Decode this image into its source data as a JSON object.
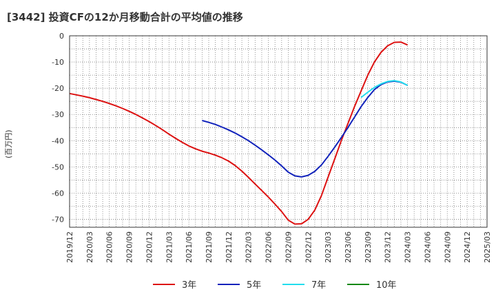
{
  "chart_data": {
    "type": "line",
    "title": "[3442]  投資CFの12か月移動合計の平均値の推移",
    "ylabel": "(百万円)",
    "ylim": [
      -73,
      0
    ],
    "yticks": [
      0,
      -10,
      -20,
      -30,
      -40,
      -50,
      -60,
      -70
    ],
    "xticks": [
      "2019/12",
      "2020/03",
      "2020/06",
      "2020/09",
      "2020/12",
      "2021/03",
      "2021/06",
      "2021/09",
      "2021/12",
      "2022/03",
      "2022/06",
      "2022/09",
      "2022/12",
      "2023/03",
      "2023/06",
      "2023/09",
      "2023/12",
      "2024/03",
      "2024/06",
      "2024/09",
      "2024/12",
      "2025/03"
    ],
    "grid": true,
    "legend_position": "bottom",
    "colors": {
      "3年": "#dd1111",
      "5年": "#1122bb",
      "7年": "#22ddee",
      "10年": "#118811"
    },
    "series": [
      {
        "name": "3年",
        "points": [
          [
            "2019/12",
            -22
          ],
          [
            "2020/01",
            -22.5
          ],
          [
            "2020/02",
            -23
          ],
          [
            "2020/03",
            -23.6
          ],
          [
            "2020/04",
            -24.3
          ],
          [
            "2020/05",
            -25
          ],
          [
            "2020/06",
            -25.8
          ],
          [
            "2020/07",
            -26.7
          ],
          [
            "2020/08",
            -27.7
          ],
          [
            "2020/09",
            -28.8
          ],
          [
            "2020/10",
            -30
          ],
          [
            "2020/11",
            -31.3
          ],
          [
            "2020/12",
            -32.7
          ],
          [
            "2021/01",
            -34.2
          ],
          [
            "2021/02",
            -35.8
          ],
          [
            "2021/03",
            -37.5
          ],
          [
            "2021/04",
            -39.1
          ],
          [
            "2021/05",
            -40.6
          ],
          [
            "2021/06",
            -42
          ],
          [
            "2021/07",
            -43.1
          ],
          [
            "2021/08",
            -44
          ],
          [
            "2021/09",
            -44.7
          ],
          [
            "2021/10",
            -45.5
          ],
          [
            "2021/11",
            -46.5
          ],
          [
            "2021/12",
            -47.8
          ],
          [
            "2022/01",
            -49.5
          ],
          [
            "2022/02",
            -51.6
          ],
          [
            "2022/03",
            -54
          ],
          [
            "2022/04",
            -56.5
          ],
          [
            "2022/05",
            -59
          ],
          [
            "2022/06",
            -61.5
          ],
          [
            "2022/07",
            -64.2
          ],
          [
            "2022/08",
            -67
          ],
          [
            "2022/09",
            -70.3
          ],
          [
            "2022/10",
            -71.8
          ],
          [
            "2022/11",
            -71.7
          ],
          [
            "2022/12",
            -70
          ],
          [
            "2023/01",
            -66.5
          ],
          [
            "2023/02",
            -61
          ],
          [
            "2023/03",
            -54
          ],
          [
            "2023/04",
            -47
          ],
          [
            "2023/05",
            -40
          ],
          [
            "2023/06",
            -33.5
          ],
          [
            "2023/07",
            -27
          ],
          [
            "2023/08",
            -21
          ],
          [
            "2023/09",
            -15
          ],
          [
            "2023/10",
            -10
          ],
          [
            "2023/11",
            -6.3
          ],
          [
            "2023/12",
            -3.8
          ],
          [
            "2024/01",
            -2.5
          ],
          [
            "2024/02",
            -2.4
          ],
          [
            "2024/03",
            -3.5
          ]
        ]
      },
      {
        "name": "5年",
        "points": [
          [
            "2021/08",
            -32.3
          ],
          [
            "2021/09",
            -33
          ],
          [
            "2021/10",
            -33.8
          ],
          [
            "2021/11",
            -34.8
          ],
          [
            "2021/12",
            -35.9
          ],
          [
            "2022/01",
            -37.1
          ],
          [
            "2022/02",
            -38.5
          ],
          [
            "2022/03",
            -40
          ],
          [
            "2022/04",
            -41.7
          ],
          [
            "2022/05",
            -43.5
          ],
          [
            "2022/06",
            -45.4
          ],
          [
            "2022/07",
            -47.4
          ],
          [
            "2022/08",
            -49.6
          ],
          [
            "2022/09",
            -52
          ],
          [
            "2022/10",
            -53.4
          ],
          [
            "2022/11",
            -53.8
          ],
          [
            "2022/12",
            -53.2
          ],
          [
            "2023/01",
            -51.7
          ],
          [
            "2023/02",
            -49.3
          ],
          [
            "2023/03",
            -46
          ],
          [
            "2023/04",
            -42.5
          ],
          [
            "2023/05",
            -38.8
          ],
          [
            "2023/06",
            -35
          ],
          [
            "2023/07",
            -31
          ],
          [
            "2023/08",
            -27
          ],
          [
            "2023/09",
            -23.5
          ],
          [
            "2023/10",
            -20.5
          ],
          [
            "2023/11",
            -18.6
          ],
          [
            "2023/12",
            -17.6
          ],
          [
            "2024/01",
            -17.3
          ],
          [
            "2024/02",
            -17.7
          ],
          [
            "2024/03",
            -18.9
          ]
        ]
      },
      {
        "name": "7年",
        "points": [
          [
            "2023/08",
            -23.5
          ],
          [
            "2023/09",
            -21.5
          ],
          [
            "2023/10",
            -19.7
          ],
          [
            "2023/11",
            -18.3
          ],
          [
            "2023/12",
            -17.4
          ],
          [
            "2024/01",
            -17.1
          ],
          [
            "2024/02",
            -17.6
          ],
          [
            "2024/03",
            -18.9
          ]
        ]
      },
      {
        "name": "10年",
        "points": []
      }
    ]
  }
}
